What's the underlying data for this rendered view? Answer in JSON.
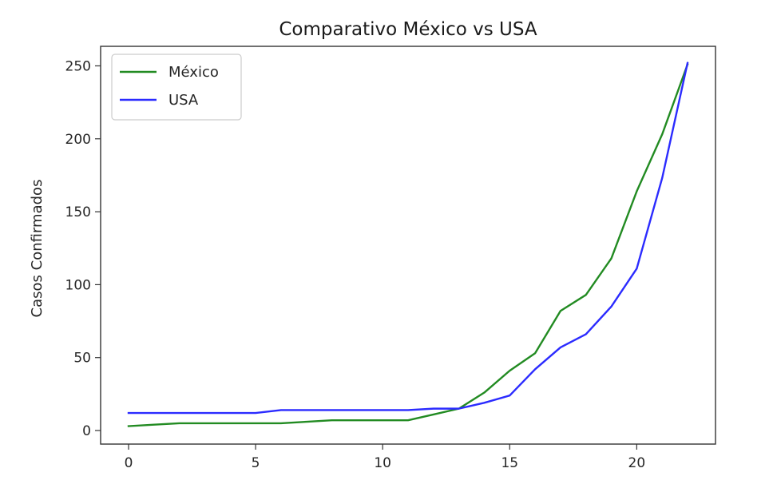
{
  "chart_data": {
    "type": "line",
    "title": "Comparativo México vs USA",
    "xlabel": "",
    "ylabel": "Casos Confirmados",
    "xlim": [
      -1.1,
      23.1
    ],
    "ylim": [
      -9.3,
      263.4
    ],
    "x_ticks": [
      0,
      5,
      10,
      15,
      20
    ],
    "y_ticks": [
      0,
      50,
      100,
      150,
      200,
      250
    ],
    "grid": false,
    "legend_position": "upper-left",
    "x": [
      0,
      1,
      2,
      3,
      4,
      5,
      6,
      7,
      8,
      9,
      10,
      11,
      12,
      13,
      14,
      15,
      16,
      17,
      18,
      19,
      20,
      21,
      22
    ],
    "series": [
      {
        "name": "México",
        "color": "#228b22",
        "values": [
          3,
          4,
          5,
          5,
          5,
          5,
          5,
          6,
          7,
          7,
          7,
          7,
          11,
          15,
          26,
          41,
          53,
          82,
          93,
          118,
          164,
          203,
          251
        ]
      },
      {
        "name": "USA",
        "color": "#2b2bff",
        "values": [
          12,
          12,
          12,
          12,
          12,
          12,
          14,
          14,
          14,
          14,
          14,
          14,
          15,
          15,
          19,
          24,
          42,
          57,
          66,
          85,
          111,
          173,
          252
        ]
      }
    ]
  }
}
